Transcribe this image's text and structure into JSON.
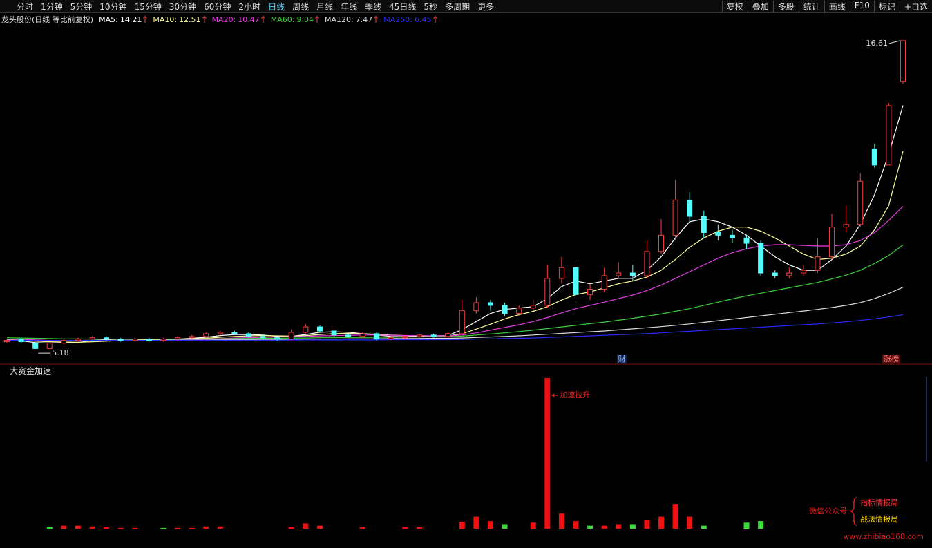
{
  "toolbar": {
    "left": [
      "分时",
      "1分钟",
      "5分钟",
      "10分钟",
      "15分钟",
      "30分钟",
      "60分钟",
      "2小时",
      "日线",
      "周线",
      "月线",
      "年线",
      "季线",
      "45日线",
      "5秒",
      "多周期",
      "更多"
    ],
    "active": 8,
    "right": [
      "复权",
      "叠加",
      "多股",
      "统计",
      "画线",
      "F10",
      "标记",
      "+自选"
    ]
  },
  "watermark": {
    "account_label": "微信公众号",
    "names": [
      "指标情报局",
      "战法情报局"
    ],
    "url": "www.zhibiao168.com"
  },
  "chart_data": [
    {
      "type": "candlestick",
      "title": "龙头股份(日线 等比前复权)",
      "open": [
        5.45,
        5.55,
        5.4,
        5.2,
        5.4,
        5.5,
        5.55,
        5.6,
        5.55,
        5.5,
        5.55,
        5.5,
        5.55,
        5.6,
        5.65,
        5.75,
        5.8,
        5.75,
        5.65,
        5.6,
        5.55,
        5.8,
        6.0,
        5.85,
        5.7,
        5.65,
        5.75,
        5.55,
        5.6,
        5.65,
        5.7,
        5.65,
        5.75,
        6.6,
        6.9,
        6.8,
        6.5,
        6.7,
        6.8,
        7.8,
        8.2,
        7.2,
        7.4,
        7.9,
        8.0,
        7.9,
        8.8,
        9.4,
        10.7,
        10.1,
        9.5,
        9.4,
        9.3,
        9.1,
        8.0,
        7.9,
        8.0,
        8.1,
        8.6,
        9.7,
        9.8,
        12.6,
        12.0,
        15.1
      ],
      "high": [
        5.55,
        5.6,
        5.45,
        5.45,
        5.55,
        5.6,
        5.65,
        5.65,
        5.6,
        5.6,
        5.6,
        5.6,
        5.65,
        5.7,
        5.8,
        5.85,
        5.85,
        5.8,
        5.7,
        5.65,
        5.9,
        6.1,
        6.05,
        5.9,
        5.75,
        5.8,
        5.8,
        5.65,
        5.7,
        5.75,
        5.75,
        5.8,
        7.0,
        7.1,
        7.0,
        6.9,
        6.8,
        7.0,
        8.3,
        8.6,
        8.3,
        7.6,
        8.2,
        8.4,
        8.3,
        9.2,
        10.0,
        11.45,
        11.0,
        10.3,
        9.8,
        9.6,
        9.4,
        9.2,
        8.1,
        8.2,
        8.3,
        9.3,
        10.2,
        10.5,
        11.7,
        12.8,
        14.3,
        16.61
      ],
      "low": [
        5.4,
        5.4,
        5.18,
        5.2,
        5.35,
        5.45,
        5.5,
        5.5,
        5.45,
        5.45,
        5.45,
        5.45,
        5.5,
        5.55,
        5.6,
        5.7,
        5.7,
        5.6,
        5.55,
        5.5,
        5.5,
        5.75,
        5.8,
        5.65,
        5.6,
        5.6,
        5.5,
        5.5,
        5.55,
        5.6,
        5.6,
        5.6,
        5.7,
        6.5,
        6.6,
        6.4,
        6.4,
        6.6,
        6.7,
        7.6,
        6.9,
        7.0,
        7.3,
        7.8,
        7.7,
        7.8,
        8.7,
        9.2,
        9.9,
        9.3,
        9.2,
        9.1,
        8.9,
        7.9,
        7.8,
        7.8,
        7.9,
        8.0,
        8.5,
        9.5,
        9.7,
        11.9,
        12.0,
        15.0
      ],
      "close": [
        5.5,
        5.45,
        5.2,
        5.4,
        5.5,
        5.55,
        5.6,
        5.55,
        5.5,
        5.55,
        5.5,
        5.55,
        5.6,
        5.65,
        5.75,
        5.8,
        5.75,
        5.65,
        5.6,
        5.55,
        5.8,
        6.0,
        5.85,
        5.7,
        5.65,
        5.75,
        5.55,
        5.6,
        5.65,
        5.7,
        5.65,
        5.75,
        6.6,
        6.9,
        6.8,
        6.5,
        6.7,
        6.8,
        7.8,
        8.2,
        7.2,
        7.4,
        7.9,
        8.0,
        7.9,
        8.8,
        9.4,
        10.7,
        10.1,
        9.5,
        9.4,
        9.3,
        9.1,
        8.0,
        7.9,
        8.0,
        8.1,
        8.6,
        9.7,
        9.8,
        11.4,
        12.0,
        14.2,
        16.61
      ],
      "up_color": "#ff3c3c",
      "down_color": "#54ffff",
      "max_label": 16.61,
      "min_label": 5.18,
      "event_markers": [
        "财",
        "涨榜"
      ],
      "ylim": [
        4.62,
        17.17
      ],
      "series": [
        {
          "name": "MA5",
          "color": "#ffffff",
          "legend_value": 14.21,
          "values": [
            5.5,
            5.48,
            5.42,
            5.4,
            5.41,
            5.42,
            5.5,
            5.53,
            5.55,
            5.55,
            5.53,
            5.53,
            5.55,
            5.58,
            5.62,
            5.68,
            5.72,
            5.72,
            5.7,
            5.65,
            5.65,
            5.72,
            5.8,
            5.82,
            5.8,
            5.75,
            5.7,
            5.65,
            5.64,
            5.65,
            5.67,
            5.68,
            5.9,
            6.2,
            6.5,
            6.65,
            6.7,
            6.75,
            7.05,
            7.5,
            7.7,
            7.6,
            7.7,
            7.8,
            7.8,
            8.1,
            8.6,
            9.3,
            9.9,
            10.0,
            9.9,
            9.7,
            9.4,
            9.0,
            8.6,
            8.3,
            8.1,
            8.1,
            8.5,
            9.0,
            9.8,
            10.9,
            12.4,
            14.21
          ]
        },
        {
          "name": "MA10",
          "color": "#ffff9a",
          "legend_value": 12.51,
          "values": [
            5.52,
            5.5,
            5.47,
            5.45,
            5.44,
            5.43,
            5.45,
            5.47,
            5.49,
            5.51,
            5.52,
            5.53,
            5.54,
            5.56,
            5.58,
            5.62,
            5.65,
            5.67,
            5.68,
            5.67,
            5.66,
            5.68,
            5.72,
            5.75,
            5.76,
            5.75,
            5.73,
            5.7,
            5.68,
            5.67,
            5.66,
            5.66,
            5.75,
            5.92,
            6.1,
            6.3,
            6.45,
            6.58,
            6.75,
            7.0,
            7.2,
            7.3,
            7.45,
            7.6,
            7.7,
            7.85,
            8.1,
            8.5,
            8.95,
            9.3,
            9.55,
            9.7,
            9.7,
            9.55,
            9.3,
            9.0,
            8.7,
            8.5,
            8.55,
            8.7,
            9.0,
            9.6,
            10.5,
            12.51
          ]
        },
        {
          "name": "MA20",
          "color": "#e33ce3",
          "legend_value": 10.47,
          "values": [
            5.55,
            5.54,
            5.52,
            5.5,
            5.49,
            5.48,
            5.48,
            5.48,
            5.48,
            5.49,
            5.5,
            5.51,
            5.52,
            5.53,
            5.55,
            5.57,
            5.59,
            5.6,
            5.62,
            5.63,
            5.64,
            5.65,
            5.67,
            5.68,
            5.69,
            5.7,
            5.7,
            5.69,
            5.68,
            5.68,
            5.67,
            5.67,
            5.7,
            5.78,
            5.88,
            5.98,
            6.08,
            6.2,
            6.35,
            6.52,
            6.68,
            6.8,
            6.92,
            7.05,
            7.18,
            7.35,
            7.55,
            7.8,
            8.05,
            8.3,
            8.55,
            8.75,
            8.9,
            9.0,
            9.05,
            9.05,
            9.02,
            9.0,
            9.0,
            9.05,
            9.2,
            9.5,
            9.95,
            10.47
          ]
        },
        {
          "name": "MA60",
          "color": "#3ad43a",
          "legend_value": 9.04,
          "values": [
            5.6,
            5.59,
            5.58,
            5.57,
            5.56,
            5.56,
            5.55,
            5.55,
            5.55,
            5.55,
            5.55,
            5.55,
            5.55,
            5.55,
            5.56,
            5.56,
            5.57,
            5.57,
            5.58,
            5.58,
            5.59,
            5.59,
            5.6,
            5.6,
            5.61,
            5.61,
            5.62,
            5.62,
            5.63,
            5.63,
            5.64,
            5.64,
            5.66,
            5.7,
            5.74,
            5.78,
            5.83,
            5.88,
            5.94,
            6.0,
            6.06,
            6.12,
            6.18,
            6.25,
            6.32,
            6.4,
            6.48,
            6.58,
            6.68,
            6.8,
            6.92,
            7.04,
            7.15,
            7.25,
            7.35,
            7.45,
            7.55,
            7.65,
            7.78,
            7.92,
            8.1,
            8.35,
            8.65,
            9.04
          ]
        },
        {
          "name": "MA120",
          "color": "#dcdcdc",
          "legend_value": 7.47,
          "values": [
            5.5,
            5.5,
            5.5,
            5.5,
            5.5,
            5.5,
            5.5,
            5.5,
            5.51,
            5.51,
            5.51,
            5.51,
            5.52,
            5.52,
            5.52,
            5.53,
            5.53,
            5.53,
            5.54,
            5.54,
            5.54,
            5.55,
            5.55,
            5.55,
            5.56,
            5.56,
            5.56,
            5.57,
            5.57,
            5.57,
            5.58,
            5.58,
            5.59,
            5.61,
            5.63,
            5.65,
            5.67,
            5.7,
            5.73,
            5.76,
            5.79,
            5.82,
            5.85,
            5.89,
            5.93,
            5.97,
            6.01,
            6.06,
            6.11,
            6.17,
            6.23,
            6.29,
            6.35,
            6.41,
            6.47,
            6.53,
            6.59,
            6.65,
            6.72,
            6.8,
            6.9,
            7.05,
            7.24,
            7.47
          ]
        },
        {
          "name": "MA250",
          "color": "#2a2aff",
          "legend_value": 6.45,
          "values": [
            5.5,
            5.5,
            5.5,
            5.5,
            5.5,
            5.5,
            5.5,
            5.5,
            5.5,
            5.5,
            5.5,
            5.5,
            5.51,
            5.51,
            5.51,
            5.51,
            5.51,
            5.51,
            5.51,
            5.51,
            5.52,
            5.52,
            5.52,
            5.52,
            5.52,
            5.52,
            5.52,
            5.53,
            5.53,
            5.53,
            5.53,
            5.53,
            5.54,
            5.55,
            5.56,
            5.57,
            5.58,
            5.59,
            5.61,
            5.63,
            5.65,
            5.67,
            5.69,
            5.71,
            5.73,
            5.75,
            5.78,
            5.81,
            5.84,
            5.87,
            5.9,
            5.93,
            5.96,
            5.99,
            6.02,
            6.05,
            6.08,
            6.11,
            6.15,
            6.19,
            6.24,
            6.3,
            6.37,
            6.45
          ]
        }
      ]
    },
    {
      "type": "bar",
      "title": "大资金加速",
      "annotation": "加速拉升",
      "values": [
        0,
        0,
        0,
        1,
        2,
        2,
        1.5,
        1,
        0.5,
        0.5,
        0,
        0.5,
        0.5,
        0.5,
        1.5,
        1.5,
        0,
        0,
        0,
        0,
        1,
        3.5,
        2,
        0,
        0,
        1,
        0,
        0,
        1,
        1,
        0,
        0,
        4.5,
        8,
        5,
        3,
        0,
        4,
        100,
        10,
        5,
        2,
        2,
        3,
        3,
        6,
        8,
        16,
        8,
        2,
        0,
        0,
        4,
        5,
        0,
        0,
        0,
        0,
        0,
        0,
        0,
        0,
        0,
        0
      ],
      "colors": [
        "#ee1111",
        "#ee1111",
        "#ee1111",
        "#3ddc3d",
        "#ee1111",
        "#ee1111",
        "#ee1111",
        "#ee1111",
        "#ee1111",
        "#ee1111",
        "#ee1111",
        "#3ddc3d",
        "#ee1111",
        "#ee1111",
        "#ee1111",
        "#ee1111",
        "#ee1111",
        "#ee1111",
        "#ee1111",
        "#ee1111",
        "#ee1111",
        "#ee1111",
        "#ee1111",
        "#ee1111",
        "#ee1111",
        "#ee1111",
        "#ee1111",
        "#ee1111",
        "#ee1111",
        "#ee1111",
        "#ee1111",
        "#ee1111",
        "#ee1111",
        "#ee1111",
        "#ee1111",
        "#3ddc3d",
        "#ee1111",
        "#ee1111",
        "#ee1111",
        "#ee1111",
        "#ee1111",
        "#3ddc3d",
        "#ee1111",
        "#ee1111",
        "#3ddc3d",
        "#ee1111",
        "#ee1111",
        "#ee1111",
        "#ee1111",
        "#3ddc3d",
        "#ee1111",
        "#ee1111",
        "#3ddc3d",
        "#3ddc3d",
        "#ee1111",
        "#ee1111",
        "#ee1111",
        "#ee1111",
        "#ee1111",
        "#ee1111",
        "#ee1111",
        "#ee1111",
        "#ee1111",
        "#ee1111"
      ],
      "ylim": [
        0,
        100
      ]
    }
  ]
}
